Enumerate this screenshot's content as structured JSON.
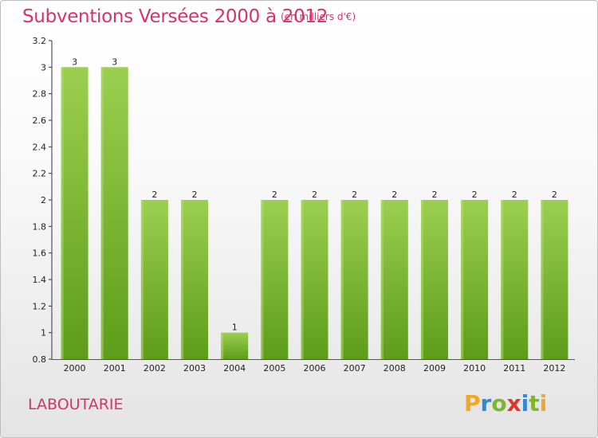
{
  "header": {
    "title": "Subventions Versées 2000 à 2012",
    "subtitle": "(en milliers d'€)"
  },
  "footer": {
    "commune": "LABOUTARIE",
    "brand": "Proxiti"
  },
  "colors": {
    "title": "#d6336c",
    "bar_top": "#9ccf4f",
    "bar_bottom": "#5d9c1a",
    "brand_letters": [
      "#f5a623",
      "#2f8bd6",
      "#7cb82f",
      "#e0342c",
      "#2f8bd6",
      "#7cb82f",
      "#f5a623"
    ]
  },
  "chart_data": {
    "type": "bar",
    "title": "Subventions Versées 2000 à 2012",
    "subtitle": "(en milliers d'€)",
    "categories": [
      "2000",
      "2001",
      "2002",
      "2003",
      "2004",
      "2005",
      "2006",
      "2007",
      "2008",
      "2009",
      "2010",
      "2011",
      "2012"
    ],
    "values": [
      3,
      3,
      2,
      2,
      1,
      2,
      2,
      2,
      2,
      2,
      2,
      2,
      2
    ],
    "data_labels": [
      "3",
      "3",
      "2",
      "2",
      "1",
      "2",
      "2",
      "2",
      "2",
      "2",
      "2",
      "2",
      "2"
    ],
    "ylim": [
      0.8,
      3.2
    ],
    "yticks": [
      0.8,
      1,
      1.2,
      1.4,
      1.6,
      1.8,
      2,
      2.2,
      2.4,
      2.6,
      2.8,
      3,
      3.2
    ],
    "ytick_labels": [
      "0.8",
      "1",
      "1.2",
      "1.4",
      "1.6",
      "1.8",
      "2",
      "2.2",
      "2.4",
      "2.6",
      "2.8",
      "3",
      "3.2"
    ],
    "grid": false,
    "legend": "none"
  }
}
